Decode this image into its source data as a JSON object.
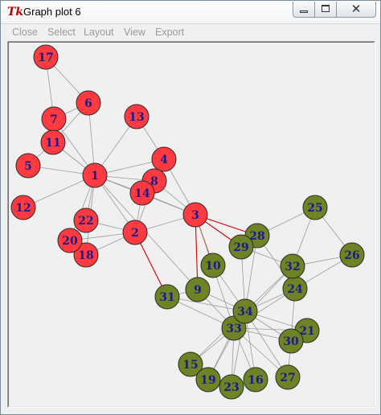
{
  "window": {
    "icon": "tk-icon",
    "title": "Graph plot 6",
    "controls": [
      "minimize-icon",
      "maximize-icon",
      "close-icon"
    ]
  },
  "menu": [
    "Close",
    "Select",
    "Layout",
    "View",
    "Export"
  ],
  "colors": {
    "group_a_fill": "#ff3a40",
    "group_a_text": "#1a1a8c",
    "group_b_fill": "#6e8323",
    "group_b_text": "#1a1a8c",
    "edge": "#9a9a9a",
    "bridge_edge": "#cc0000",
    "menu_text_disabled": "#9a9a9a"
  },
  "graph": {
    "nodes": [
      {
        "id": "1",
        "group": "a"
      },
      {
        "id": "2",
        "group": "a"
      },
      {
        "id": "3",
        "group": "a"
      },
      {
        "id": "4",
        "group": "a"
      },
      {
        "id": "5",
        "group": "a"
      },
      {
        "id": "6",
        "group": "a"
      },
      {
        "id": "7",
        "group": "a"
      },
      {
        "id": "8",
        "group": "a"
      },
      {
        "id": "11",
        "group": "a"
      },
      {
        "id": "12",
        "group": "a"
      },
      {
        "id": "13",
        "group": "a"
      },
      {
        "id": "14",
        "group": "a"
      },
      {
        "id": "17",
        "group": "a"
      },
      {
        "id": "18",
        "group": "a"
      },
      {
        "id": "20",
        "group": "a"
      },
      {
        "id": "22",
        "group": "a"
      },
      {
        "id": "9",
        "group": "b"
      },
      {
        "id": "10",
        "group": "b"
      },
      {
        "id": "15",
        "group": "b"
      },
      {
        "id": "16",
        "group": "b"
      },
      {
        "id": "19",
        "group": "b"
      },
      {
        "id": "21",
        "group": "b"
      },
      {
        "id": "23",
        "group": "b"
      },
      {
        "id": "24",
        "group": "b"
      },
      {
        "id": "25",
        "group": "b"
      },
      {
        "id": "26",
        "group": "b"
      },
      {
        "id": "27",
        "group": "b"
      },
      {
        "id": "28",
        "group": "b"
      },
      {
        "id": "29",
        "group": "b"
      },
      {
        "id": "30",
        "group": "b"
      },
      {
        "id": "31",
        "group": "b"
      },
      {
        "id": "32",
        "group": "b"
      },
      {
        "id": "33",
        "group": "b"
      },
      {
        "id": "34",
        "group": "b"
      }
    ],
    "edges": [
      [
        "17",
        "6"
      ],
      [
        "17",
        "7"
      ],
      [
        "6",
        "7"
      ],
      [
        "6",
        "11"
      ],
      [
        "6",
        "1"
      ],
      [
        "7",
        "11"
      ],
      [
        "7",
        "1"
      ],
      [
        "11",
        "5"
      ],
      [
        "11",
        "1"
      ],
      [
        "5",
        "1"
      ],
      [
        "12",
        "1"
      ],
      [
        "13",
        "1"
      ],
      [
        "13",
        "4"
      ],
      [
        "4",
        "1"
      ],
      [
        "4",
        "3"
      ],
      [
        "8",
        "1"
      ],
      [
        "8",
        "3"
      ],
      [
        "8",
        "4"
      ],
      [
        "14",
        "1"
      ],
      [
        "14",
        "3"
      ],
      [
        "14",
        "4"
      ],
      [
        "14",
        "2"
      ],
      [
        "1",
        "2"
      ],
      [
        "1",
        "3"
      ],
      [
        "1",
        "22"
      ],
      [
        "1",
        "20"
      ],
      [
        "1",
        "18"
      ],
      [
        "22",
        "2"
      ],
      [
        "20",
        "2"
      ],
      [
        "18",
        "2"
      ],
      [
        "2",
        "3"
      ],
      [
        "8",
        "2"
      ],
      [
        "3",
        "10"
      ],
      [
        "3",
        "28"
      ],
      [
        "3",
        "29"
      ],
      [
        "3",
        "9"
      ],
      [
        "3",
        "33"
      ],
      [
        "2",
        "31"
      ],
      [
        "1",
        "9"
      ],
      [
        "9",
        "31"
      ],
      [
        "9",
        "33"
      ],
      [
        "9",
        "34"
      ],
      [
        "10",
        "34"
      ],
      [
        "29",
        "32"
      ],
      [
        "29",
        "34"
      ],
      [
        "28",
        "34"
      ],
      [
        "28",
        "24"
      ],
      [
        "28",
        "25"
      ],
      [
        "25",
        "32"
      ],
      [
        "25",
        "26"
      ],
      [
        "26",
        "24"
      ],
      [
        "26",
        "32"
      ],
      [
        "32",
        "33"
      ],
      [
        "32",
        "34"
      ],
      [
        "24",
        "34"
      ],
      [
        "24",
        "33"
      ],
      [
        "24",
        "30"
      ],
      [
        "31",
        "34"
      ],
      [
        "31",
        "33"
      ],
      [
        "34",
        "33"
      ],
      [
        "34",
        "21"
      ],
      [
        "34",
        "30"
      ],
      [
        "34",
        "15"
      ],
      [
        "34",
        "16"
      ],
      [
        "34",
        "19"
      ],
      [
        "34",
        "23"
      ],
      [
        "34",
        "27"
      ],
      [
        "33",
        "21"
      ],
      [
        "33",
        "30"
      ],
      [
        "33",
        "15"
      ],
      [
        "33",
        "16"
      ],
      [
        "33",
        "19"
      ],
      [
        "33",
        "23"
      ],
      [
        "33",
        "27"
      ],
      [
        "30",
        "27"
      ],
      [
        "30",
        "21"
      ]
    ],
    "bridge_edges": [
      [
        "2",
        "31"
      ],
      [
        "3",
        "10"
      ],
      [
        "3",
        "28"
      ],
      [
        "3",
        "29"
      ],
      [
        "3",
        "9"
      ]
    ]
  }
}
